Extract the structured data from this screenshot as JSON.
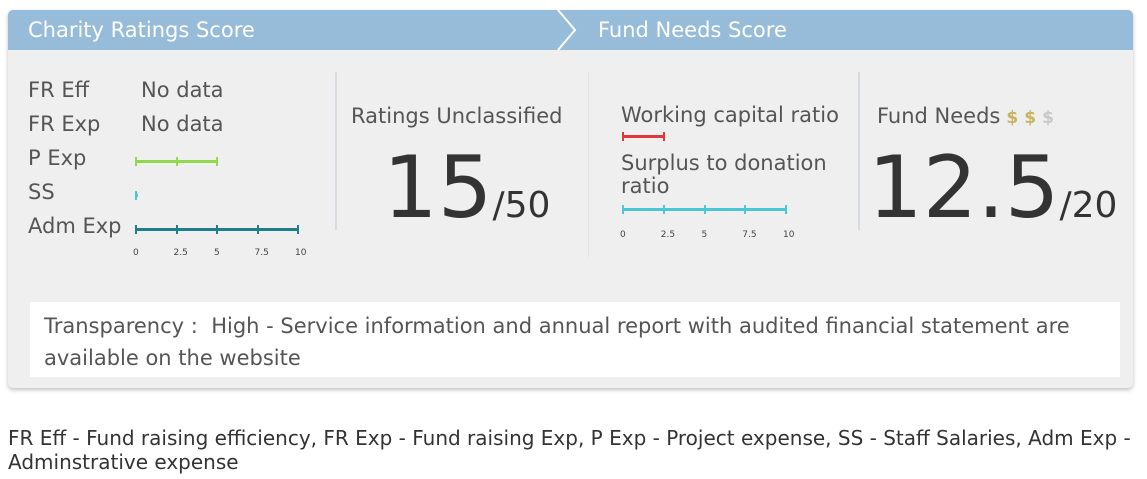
{
  "header": {
    "left_title": "Charity Ratings Score",
    "right_title": "Fund Needs Score"
  },
  "ratings": {
    "metrics": [
      {
        "label": "FR Eff",
        "value": "No data"
      },
      {
        "label": "FR Exp",
        "value": "No data"
      },
      {
        "label": "P Exp",
        "bar": 5,
        "color": "#8fd94a"
      },
      {
        "label": "SS",
        "bar": 0,
        "color": "#4bc6d4"
      },
      {
        "label": "Adm Exp",
        "bar": 10,
        "color": "#1f7f88"
      }
    ],
    "axis_ticks": [
      "0",
      "2.5",
      "5",
      "7.5",
      "10"
    ],
    "classification": "Ratings Unclassified",
    "score": "15",
    "max": "/50"
  },
  "fund": {
    "metrics": [
      {
        "label": "Working capital ratio",
        "bar": 2.5,
        "color": "#e0393b"
      },
      {
        "label": "Surplus to donation ratio",
        "bar": 10,
        "color": "#4bc6d4"
      }
    ],
    "axis_ticks": [
      "0",
      "2.5",
      "5",
      "7.5",
      "10"
    ],
    "title": "Fund Needs",
    "coins": [
      {
        "symbol": "$",
        "active": true
      },
      {
        "symbol": "$",
        "active": true
      },
      {
        "symbol": "$",
        "active": false
      }
    ],
    "score": "12.5",
    "max": "/20"
  },
  "transparency": {
    "label": "Transparency :",
    "value": "High - Service information and annual report with audited financial statement are available on the website"
  },
  "footnote": "FR Eff - Fund raising efficiency, FR Exp - Fund raising Exp, P Exp - Project expense, SS - Staff Salaries, Adm Exp - Adminstrative expense"
}
